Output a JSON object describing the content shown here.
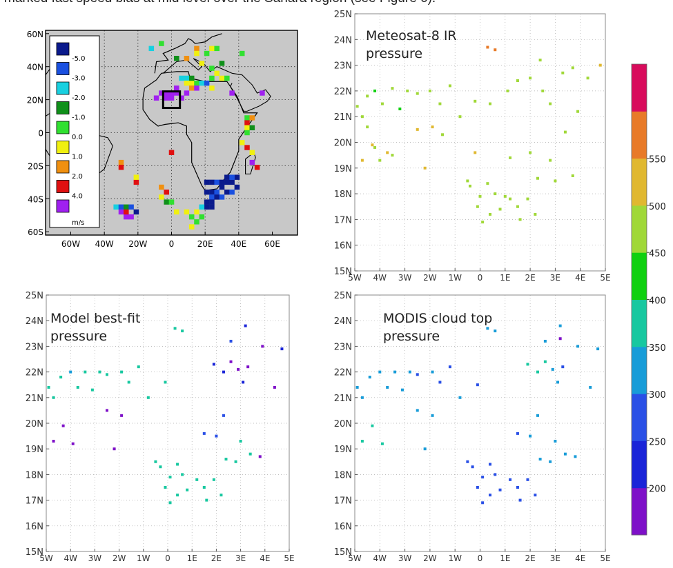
{
  "caption_fragment": "marked fast speed bias at mid level over the Sahara region (see Figure 6).",
  "colors": {
    "cb": [
      "#7e10c8",
      "#1a24d8",
      "#2a50e6",
      "#189cd8",
      "#18c8a0",
      "#10d010",
      "#a0d838",
      "#e0b830",
      "#e87a28",
      "#d80c5c"
    ],
    "frame": "#000000",
    "grid": "#aaaaaa",
    "map_bg": "#c8c8c8",
    "coast": "#000000"
  },
  "colorbar": {
    "ticks": [
      "200",
      "250",
      "300",
      "350",
      "400",
      "450",
      "500",
      "550"
    ]
  },
  "panels": {
    "meteosat": {
      "title_lines": [
        "Meteosat-8 IR",
        "pressure"
      ]
    },
    "model": {
      "title_lines": [
        "Model best-fit",
        "pressure"
      ]
    },
    "modis": {
      "title_lines": [
        "MODIS cloud top",
        "pressure"
      ]
    }
  },
  "axes": {
    "x_labels": [
      "5W",
      "4W",
      "3W",
      "2W",
      "1W",
      "0",
      "1E",
      "2E",
      "3E",
      "4E",
      "5E"
    ],
    "y_labels": [
      "15N",
      "16N",
      "17N",
      "18N",
      "19N",
      "20N",
      "21N",
      "22N",
      "23N",
      "24N",
      "25N"
    ],
    "xlim": [
      -5,
      5
    ],
    "ylim": [
      15,
      25
    ]
  },
  "bias_map": {
    "x_labels": [
      "60W",
      "40W",
      "20W",
      "0",
      "20E",
      "40E",
      "60E"
    ],
    "y_labels": [
      "60N",
      "40N",
      "20N",
      "0",
      "20S",
      "40S",
      "60S"
    ],
    "legend": [
      {
        "label": "-5.0",
        "color": "#0a1a8c"
      },
      {
        "label": "-3.0",
        "color": "#1a50e0"
      },
      {
        "label": "-2.0",
        "color": "#18d0e0"
      },
      {
        "label": "-1.0",
        "color": "#10901a"
      },
      {
        "label": "0.0",
        "color": "#30e030"
      },
      {
        "label": "1.0",
        "color": "#f0f010"
      },
      {
        "label": "2.0",
        "color": "#f09010"
      },
      {
        "label": "4.0",
        "color": "#e01010"
      },
      {
        "label": "",
        "color": "#a020f0"
      }
    ],
    "unit": "m/s"
  },
  "chart_data": [
    {
      "type": "scatter",
      "title": "Meteosat-8 IR pressure",
      "xlim": [
        -5,
        5
      ],
      "ylim": [
        15,
        25
      ],
      "points": [
        [
          -4.9,
          21.4,
          420
        ],
        [
          -4.7,
          21.0,
          420
        ],
        [
          -4.5,
          21.8,
          400
        ],
        [
          -4.2,
          22.0,
          380
        ],
        [
          -3.9,
          21.5,
          400
        ],
        [
          -3.5,
          22.1,
          400
        ],
        [
          -3.2,
          21.3,
          380
        ],
        [
          -2.9,
          22.0,
          420
        ],
        [
          -2.5,
          21.9,
          400
        ],
        [
          -2.0,
          22.0,
          420
        ],
        [
          -1.6,
          21.5,
          400
        ],
        [
          -1.2,
          22.2,
          400
        ],
        [
          -0.8,
          21.0,
          420
        ],
        [
          -0.2,
          21.6,
          400
        ],
        [
          0.4,
          21.5,
          400
        ],
        [
          1.1,
          22.0,
          400
        ],
        [
          1.5,
          22.4,
          420
        ],
        [
          2.0,
          22.5,
          400
        ],
        [
          2.5,
          22.0,
          400
        ],
        [
          2.8,
          21.5,
          420
        ],
        [
          3.3,
          22.7,
          420
        ],
        [
          -4.7,
          19.3,
          460
        ],
        [
          -4.3,
          19.9,
          460
        ],
        [
          -4.0,
          19.3,
          440
        ],
        [
          -3.7,
          19.6,
          460
        ],
        [
          -2.5,
          20.5,
          450
        ],
        [
          -1.9,
          20.6,
          460
        ],
        [
          -1.5,
          20.3,
          440
        ],
        [
          -2.2,
          19.0,
          460
        ],
        [
          -0.2,
          19.6,
          470
        ],
        [
          0.3,
          23.7,
          520
        ],
        [
          0.6,
          23.6,
          500
        ],
        [
          -4.5,
          20.6,
          400
        ],
        [
          -4.2,
          19.8,
          400
        ],
        [
          -3.5,
          19.5,
          400
        ],
        [
          -0.5,
          18.5,
          400
        ],
        [
          -0.4,
          18.3,
          400
        ],
        [
          0.0,
          17.9,
          420
        ],
        [
          0.3,
          18.4,
          400
        ],
        [
          0.6,
          18.0,
          420
        ],
        [
          -0.1,
          17.5,
          400
        ],
        [
          0.4,
          17.2,
          420
        ],
        [
          0.1,
          16.9,
          420
        ],
        [
          0.8,
          17.4,
          400
        ],
        [
          1.2,
          17.8,
          400
        ],
        [
          1.5,
          17.5,
          400
        ],
        [
          1.9,
          17.8,
          400
        ],
        [
          2.2,
          17.2,
          400
        ],
        [
          1.6,
          17.0,
          420
        ],
        [
          1.0,
          17.9,
          400
        ],
        [
          2.3,
          18.6,
          400
        ],
        [
          3.0,
          18.5,
          420
        ],
        [
          3.7,
          18.7,
          420
        ],
        [
          2.8,
          19.3,
          420
        ],
        [
          2.0,
          19.6,
          420
        ],
        [
          1.2,
          19.4,
          400
        ],
        [
          3.4,
          20.4,
          420
        ],
        [
          3.9,
          21.2,
          420
        ],
        [
          4.3,
          22.5,
          440
        ],
        [
          4.8,
          23.0,
          460
        ],
        [
          3.7,
          22.9,
          420
        ],
        [
          2.4,
          23.2,
          420
        ]
      ]
    },
    {
      "type": "scatter",
      "title": "Model best-fit pressure",
      "xlim": [
        -5,
        5
      ],
      "ylim": [
        15,
        25
      ],
      "points": [
        [
          -4.9,
          21.4,
          300
        ],
        [
          -4.7,
          21.0,
          300
        ],
        [
          -4.4,
          21.8,
          300
        ],
        [
          -4.0,
          22.0,
          290
        ],
        [
          -3.7,
          21.4,
          300
        ],
        [
          -3.4,
          22.0,
          300
        ],
        [
          -3.1,
          21.3,
          320
        ],
        [
          -2.8,
          22.0,
          300
        ],
        [
          -2.5,
          21.9,
          300
        ],
        [
          -1.9,
          22.0,
          300
        ],
        [
          -1.6,
          21.6,
          300
        ],
        [
          -1.2,
          22.2,
          300
        ],
        [
          -0.8,
          21.0,
          300
        ],
        [
          -0.1,
          21.6,
          300
        ],
        [
          0.3,
          23.7,
          320
        ],
        [
          0.6,
          23.6,
          300
        ],
        [
          -4.7,
          19.3,
          180
        ],
        [
          -4.3,
          19.9,
          180
        ],
        [
          -3.9,
          19.2,
          180
        ],
        [
          -2.5,
          20.5,
          180
        ],
        [
          -1.9,
          20.3,
          180
        ],
        [
          -2.2,
          19.0,
          180
        ],
        [
          -0.5,
          18.5,
          310
        ],
        [
          -0.3,
          18.3,
          310
        ],
        [
          0.1,
          17.9,
          310
        ],
        [
          0.4,
          18.4,
          310
        ],
        [
          0.6,
          18.0,
          310
        ],
        [
          -0.1,
          17.5,
          310
        ],
        [
          0.4,
          17.2,
          310
        ],
        [
          0.1,
          16.9,
          310
        ],
        [
          0.8,
          17.4,
          310
        ],
        [
          1.2,
          17.8,
          310
        ],
        [
          1.5,
          17.5,
          310
        ],
        [
          1.9,
          17.8,
          310
        ],
        [
          2.2,
          17.2,
          310
        ],
        [
          1.6,
          17.0,
          310
        ],
        [
          1.9,
          22.3,
          220
        ],
        [
          2.3,
          22.0,
          220
        ],
        [
          2.6,
          22.4,
          180
        ],
        [
          2.9,
          22.1,
          190
        ],
        [
          3.1,
          21.6,
          210
        ],
        [
          3.3,
          22.2,
          190
        ],
        [
          2.6,
          23.2,
          230
        ],
        [
          3.2,
          23.8,
          220
        ],
        [
          4.4,
          21.4,
          180
        ],
        [
          4.7,
          22.9,
          200
        ],
        [
          3.9,
          23.0,
          190
        ],
        [
          2.3,
          20.3,
          230
        ],
        [
          2.0,
          19.5,
          230
        ],
        [
          1.5,
          19.6,
          230
        ],
        [
          2.8,
          18.5,
          310
        ],
        [
          3.4,
          18.8,
          310
        ],
        [
          3.8,
          18.7,
          180
        ],
        [
          3.0,
          19.3,
          300
        ],
        [
          2.4,
          18.6,
          300
        ]
      ]
    },
    {
      "type": "scatter",
      "title": "MODIS cloud top pressure",
      "xlim": [
        -5,
        5
      ],
      "ylim": [
        15,
        25
      ],
      "points": [
        [
          -4.9,
          21.4,
          270
        ],
        [
          -4.7,
          21.0,
          270
        ],
        [
          -4.4,
          21.8,
          270
        ],
        [
          -4.0,
          22.0,
          260
        ],
        [
          -3.7,
          21.4,
          270
        ],
        [
          -3.4,
          22.0,
          260
        ],
        [
          -3.1,
          21.3,
          270
        ],
        [
          -2.8,
          22.0,
          260
        ],
        [
          -2.5,
          21.9,
          230
        ],
        [
          -1.9,
          22.0,
          260
        ],
        [
          -1.6,
          21.6,
          230
        ],
        [
          -1.2,
          22.2,
          230
        ],
        [
          -0.8,
          21.0,
          270
        ],
        [
          -0.1,
          21.5,
          230
        ],
        [
          0.3,
          23.7,
          270
        ],
        [
          0.6,
          23.6,
          270
        ],
        [
          -4.7,
          19.3,
          300
        ],
        [
          -4.3,
          19.9,
          300
        ],
        [
          -3.9,
          19.2,
          300
        ],
        [
          -2.5,
          20.5,
          270
        ],
        [
          -1.9,
          20.3,
          270
        ],
        [
          -2.2,
          19.0,
          270
        ],
        [
          -0.5,
          18.5,
          225
        ],
        [
          -0.3,
          18.3,
          225
        ],
        [
          0.1,
          17.9,
          225
        ],
        [
          0.4,
          18.4,
          225
        ],
        [
          0.6,
          18.0,
          225
        ],
        [
          -0.1,
          17.5,
          225
        ],
        [
          0.4,
          17.2,
          225
        ],
        [
          0.1,
          16.9,
          225
        ],
        [
          0.8,
          17.4,
          225
        ],
        [
          1.2,
          17.8,
          225
        ],
        [
          1.5,
          17.5,
          225
        ],
        [
          1.9,
          17.8,
          225
        ],
        [
          2.2,
          17.2,
          225
        ],
        [
          1.6,
          17.0,
          225
        ],
        [
          1.9,
          22.3,
          300
        ],
        [
          2.3,
          22.0,
          300
        ],
        [
          2.6,
          22.4,
          300
        ],
        [
          2.9,
          22.1,
          270
        ],
        [
          3.1,
          21.6,
          270
        ],
        [
          3.3,
          22.2,
          230
        ],
        [
          2.6,
          23.2,
          270
        ],
        [
          3.2,
          23.8,
          270
        ],
        [
          4.4,
          21.4,
          270
        ],
        [
          4.7,
          22.9,
          270
        ],
        [
          3.9,
          23.0,
          270
        ],
        [
          2.3,
          20.3,
          270
        ],
        [
          2.0,
          19.5,
          270
        ],
        [
          1.5,
          19.6,
          230
        ],
        [
          2.8,
          18.5,
          270
        ],
        [
          3.4,
          18.8,
          270
        ],
        [
          3.8,
          18.7,
          270
        ],
        [
          3.0,
          19.3,
          270
        ],
        [
          2.4,
          18.6,
          270
        ],
        [
          3.2,
          23.3,
          180
        ]
      ]
    }
  ]
}
